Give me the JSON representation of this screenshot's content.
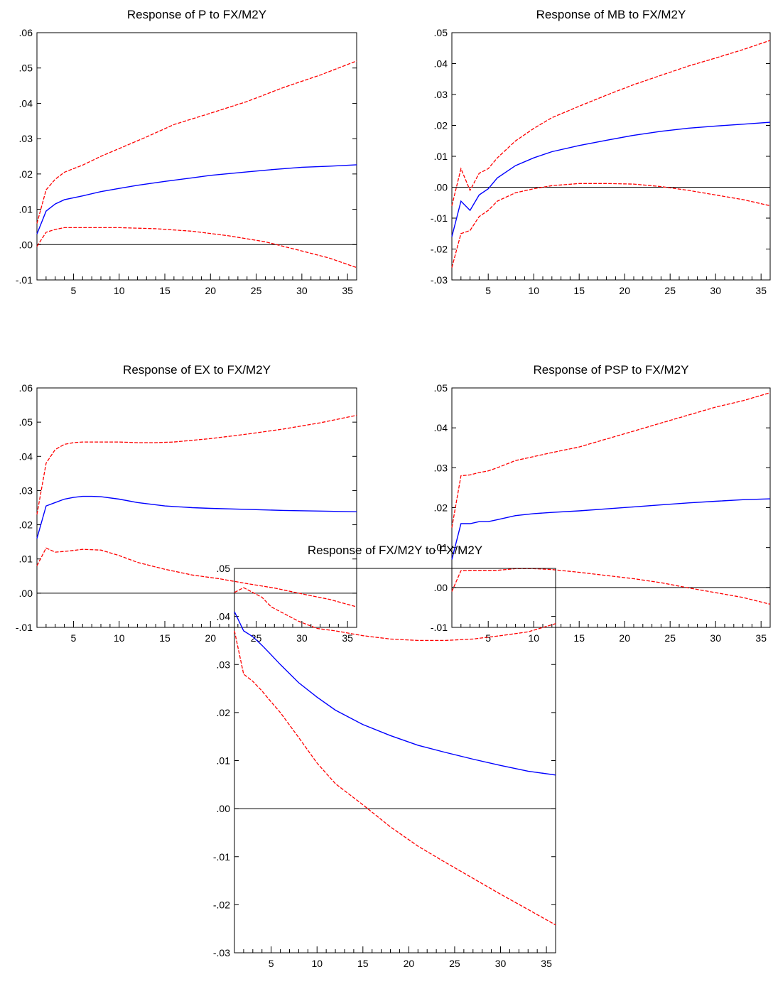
{
  "colors": {
    "response": "#0000ff",
    "band": "#ff0000",
    "zero_line": "#000000",
    "frame": "#000000"
  },
  "chart_data": [
    {
      "type": "line",
      "title": "Response of P to FX/M2Y",
      "xlim": [
        1,
        36
      ],
      "xticks": [
        5,
        10,
        15,
        20,
        25,
        30,
        35
      ],
      "xtick_labels": [
        "5",
        "10",
        "15",
        "20",
        "25",
        "30",
        "35"
      ],
      "ylim": [
        -0.01,
        0.06
      ],
      "yticks": [
        -0.01,
        0.0,
        0.01,
        0.02,
        0.03,
        0.04,
        0.05,
        0.06
      ],
      "ytick_labels": [
        "-.01",
        ".00",
        ".01",
        ".02",
        ".03",
        ".04",
        ".05",
        ".06"
      ],
      "series": [
        {
          "role": "response",
          "style": "solid",
          "x": [
            1,
            2,
            3,
            4,
            6,
            8,
            10,
            12,
            15,
            18,
            20,
            24,
            27,
            30,
            33,
            36
          ],
          "values": [
            0.003,
            0.0095,
            0.0115,
            0.0127,
            0.0138,
            0.015,
            0.0159,
            0.0168,
            0.0179,
            0.0189,
            0.0196,
            0.0206,
            0.0213,
            0.0219,
            0.0222,
            0.0226
          ]
        },
        {
          "role": "upper-band",
          "style": "dashed",
          "x": [
            1,
            2,
            3,
            4,
            6,
            8,
            10,
            13,
            16,
            20,
            24,
            28,
            32,
            36
          ],
          "values": [
            0.006,
            0.0155,
            0.0185,
            0.0205,
            0.0225,
            0.025,
            0.0272,
            0.0305,
            0.034,
            0.0372,
            0.0405,
            0.0445,
            0.048,
            0.052
          ]
        },
        {
          "role": "lower-band",
          "style": "dashed",
          "x": [
            1,
            2,
            3,
            4,
            6,
            10,
            14,
            18,
            22,
            26,
            28,
            30,
            33,
            36
          ],
          "values": [
            -0.0005,
            0.0035,
            0.0043,
            0.0048,
            0.0048,
            0.0048,
            0.0045,
            0.0038,
            0.0025,
            0.0008,
            -0.0005,
            -0.0018,
            -0.0038,
            -0.0065
          ]
        }
      ]
    },
    {
      "type": "line",
      "title": "Response of MB to FX/M2Y",
      "xlim": [
        1,
        36
      ],
      "xticks": [
        5,
        10,
        15,
        20,
        25,
        30,
        35
      ],
      "xtick_labels": [
        "5",
        "10",
        "15",
        "20",
        "25",
        "30",
        "35"
      ],
      "ylim": [
        -0.03,
        0.05
      ],
      "yticks": [
        -0.03,
        -0.02,
        -0.01,
        0.0,
        0.01,
        0.02,
        0.03,
        0.04,
        0.05
      ],
      "ytick_labels": [
        "-.03",
        "-.02",
        "-.01",
        ".00",
        ".01",
        ".02",
        ".03",
        ".04",
        ".05"
      ],
      "series": [
        {
          "role": "response",
          "style": "solid",
          "x": [
            1,
            2,
            3,
            4,
            5,
            6,
            8,
            10,
            12,
            15,
            18,
            21,
            24,
            27,
            30,
            33,
            36
          ],
          "values": [
            -0.016,
            -0.0045,
            -0.0075,
            -0.0025,
            -0.0005,
            0.003,
            0.007,
            0.0095,
            0.0115,
            0.0135,
            0.0152,
            0.0168,
            0.0181,
            0.0191,
            0.0198,
            0.0204,
            0.021
          ]
        },
        {
          "role": "upper-band",
          "style": "dashed",
          "x": [
            1,
            2,
            3,
            4,
            5,
            6,
            8,
            10,
            12,
            15,
            18,
            21,
            24,
            27,
            30,
            33,
            36
          ],
          "values": [
            -0.006,
            0.006,
            -0.001,
            0.0045,
            0.006,
            0.0095,
            0.015,
            0.019,
            0.0225,
            0.0262,
            0.0298,
            0.0332,
            0.0362,
            0.0392,
            0.0418,
            0.0445,
            0.0475
          ]
        },
        {
          "role": "lower-band",
          "style": "dashed",
          "x": [
            1,
            2,
            3,
            4,
            5,
            6,
            8,
            10,
            12,
            15,
            18,
            21,
            24,
            27,
            30,
            33,
            36
          ],
          "values": [
            -0.026,
            -0.015,
            -0.014,
            -0.0095,
            -0.0075,
            -0.0045,
            -0.0018,
            -0.0005,
            0.0005,
            0.0012,
            0.0012,
            0.001,
            0.0002,
            -0.001,
            -0.0025,
            -0.004,
            -0.006
          ]
        }
      ]
    },
    {
      "type": "line",
      "title": "Response of EX to FX/M2Y",
      "xlim": [
        1,
        36
      ],
      "xticks": [
        5,
        10,
        15,
        20,
        25,
        30,
        35
      ],
      "xtick_labels": [
        "5",
        "10",
        "15",
        "20",
        "25",
        "30",
        "35"
      ],
      "ylim": [
        -0.01,
        0.06
      ],
      "yticks": [
        -0.01,
        0.0,
        0.01,
        0.02,
        0.03,
        0.04,
        0.05,
        0.06
      ],
      "ytick_labels": [
        "-.01",
        ".00",
        ".01",
        ".02",
        ".03",
        ".04",
        ".05",
        ".06"
      ],
      "series": [
        {
          "role": "response",
          "style": "solid",
          "x": [
            1,
            2,
            3,
            4,
            5,
            6,
            7,
            8,
            10,
            12,
            15,
            18,
            20,
            24,
            28,
            32,
            36
          ],
          "values": [
            0.016,
            0.0255,
            0.0265,
            0.0275,
            0.028,
            0.0283,
            0.0283,
            0.0282,
            0.0275,
            0.0265,
            0.0255,
            0.025,
            0.0248,
            0.0245,
            0.0242,
            0.024,
            0.0238
          ]
        },
        {
          "role": "upper-band",
          "style": "dashed",
          "x": [
            1,
            2,
            3,
            4,
            5,
            6,
            8,
            10,
            12,
            14,
            16,
            18,
            20,
            24,
            28,
            32,
            36
          ],
          "values": [
            0.023,
            0.038,
            0.042,
            0.0435,
            0.044,
            0.0442,
            0.0442,
            0.0442,
            0.044,
            0.044,
            0.0442,
            0.0447,
            0.0452,
            0.0465,
            0.048,
            0.0498,
            0.052
          ]
        },
        {
          "role": "lower-band",
          "style": "dashed",
          "x": [
            1,
            2,
            3,
            4,
            5,
            6,
            8,
            10,
            12,
            15,
            18,
            21,
            24,
            27,
            30,
            33,
            36
          ],
          "values": [
            0.008,
            0.0132,
            0.012,
            0.0122,
            0.0125,
            0.0128,
            0.0126,
            0.011,
            0.009,
            0.007,
            0.0053,
            0.0042,
            0.0028,
            0.0015,
            -0.0002,
            -0.0018,
            -0.004
          ]
        }
      ]
    },
    {
      "type": "line",
      "title": "Response of PSP to FX/M2Y",
      "xlim": [
        1,
        36
      ],
      "xticks": [
        5,
        10,
        15,
        20,
        25,
        30,
        35
      ],
      "xtick_labels": [
        "5",
        "10",
        "15",
        "20",
        "25",
        "30",
        "35"
      ],
      "ylim": [
        -0.01,
        0.05
      ],
      "yticks": [
        -0.01,
        0.0,
        0.01,
        0.02,
        0.03,
        0.04,
        0.05
      ],
      "ytick_labels": [
        "-.01",
        ".00",
        ".01",
        ".02",
        ".03",
        ".04",
        ".05"
      ],
      "series": [
        {
          "role": "response",
          "style": "solid",
          "x": [
            1,
            2,
            3,
            4,
            5,
            6,
            8,
            10,
            12,
            15,
            18,
            21,
            24,
            27,
            30,
            33,
            36
          ],
          "values": [
            0.007,
            0.016,
            0.016,
            0.0165,
            0.0165,
            0.017,
            0.018,
            0.0185,
            0.0188,
            0.0192,
            0.0197,
            0.0202,
            0.0207,
            0.0212,
            0.0216,
            0.022,
            0.0222
          ]
        },
        {
          "role": "upper-band",
          "style": "dashed",
          "x": [
            1,
            2,
            3,
            4,
            5,
            6,
            8,
            10,
            12,
            15,
            18,
            21,
            24,
            27,
            30,
            33,
            36
          ],
          "values": [
            0.015,
            0.028,
            0.0282,
            0.0288,
            0.0292,
            0.03,
            0.0318,
            0.0328,
            0.0338,
            0.0352,
            0.0372,
            0.0392,
            0.0412,
            0.0432,
            0.0452,
            0.0468,
            0.0488
          ]
        },
        {
          "role": "lower-band",
          "style": "dashed",
          "x": [
            1,
            2,
            3,
            4,
            5,
            6,
            8,
            10,
            12,
            15,
            18,
            21,
            24,
            27,
            30,
            33,
            36
          ],
          "values": [
            -0.001,
            0.0042,
            0.0043,
            0.0043,
            0.0043,
            0.0043,
            0.0047,
            0.0047,
            0.0045,
            0.0038,
            0.003,
            0.0022,
            0.0012,
            -0.0001,
            -0.0013,
            -0.0025,
            -0.0042
          ]
        }
      ]
    },
    {
      "type": "line",
      "title": "Response of FX/M2Y to FX/M2Y",
      "xlim": [
        1,
        36
      ],
      "xticks": [
        5,
        10,
        15,
        20,
        25,
        30,
        35
      ],
      "xtick_labels": [
        "5",
        "10",
        "15",
        "20",
        "25",
        "30",
        "35"
      ],
      "ylim": [
        -0.03,
        0.05
      ],
      "yticks": [
        -0.03,
        -0.02,
        -0.01,
        0.0,
        0.01,
        0.02,
        0.03,
        0.04,
        0.05
      ],
      "ytick_labels": [
        "-.03",
        "-.02",
        "-.01",
        ".00",
        ".01",
        ".02",
        ".03",
        ".04",
        ".05"
      ],
      "series": [
        {
          "role": "response",
          "style": "solid",
          "x": [
            1,
            2,
            3,
            4,
            5,
            6,
            8,
            10,
            12,
            15,
            18,
            21,
            24,
            27,
            30,
            33,
            36
          ],
          "values": [
            0.041,
            0.037,
            0.0358,
            0.034,
            0.032,
            0.03,
            0.0262,
            0.0232,
            0.0205,
            0.0175,
            0.0152,
            0.0132,
            0.0117,
            0.0103,
            0.009,
            0.0078,
            0.007
          ]
        },
        {
          "role": "upper-band",
          "style": "dashed",
          "x": [
            1,
            2,
            3,
            4,
            5,
            6,
            8,
            10,
            12,
            15,
            18,
            21,
            24,
            27,
            30,
            33,
            36
          ],
          "values": [
            0.045,
            0.046,
            0.045,
            0.044,
            0.042,
            0.041,
            0.039,
            0.0375,
            0.037,
            0.036,
            0.0353,
            0.035,
            0.035,
            0.0353,
            0.036,
            0.0368,
            0.0385
          ]
        },
        {
          "role": "lower-band",
          "style": "dashed",
          "x": [
            1,
            2,
            3,
            4,
            5,
            6,
            8,
            10,
            12,
            15,
            18,
            21,
            24,
            27,
            30,
            33,
            36
          ],
          "values": [
            0.037,
            0.028,
            0.0265,
            0.0245,
            0.0222,
            0.02,
            0.0148,
            0.0095,
            0.0052,
            0.0008,
            -0.0038,
            -0.0078,
            -0.0112,
            -0.0145,
            -0.0178,
            -0.021,
            -0.0242
          ]
        }
      ]
    }
  ]
}
